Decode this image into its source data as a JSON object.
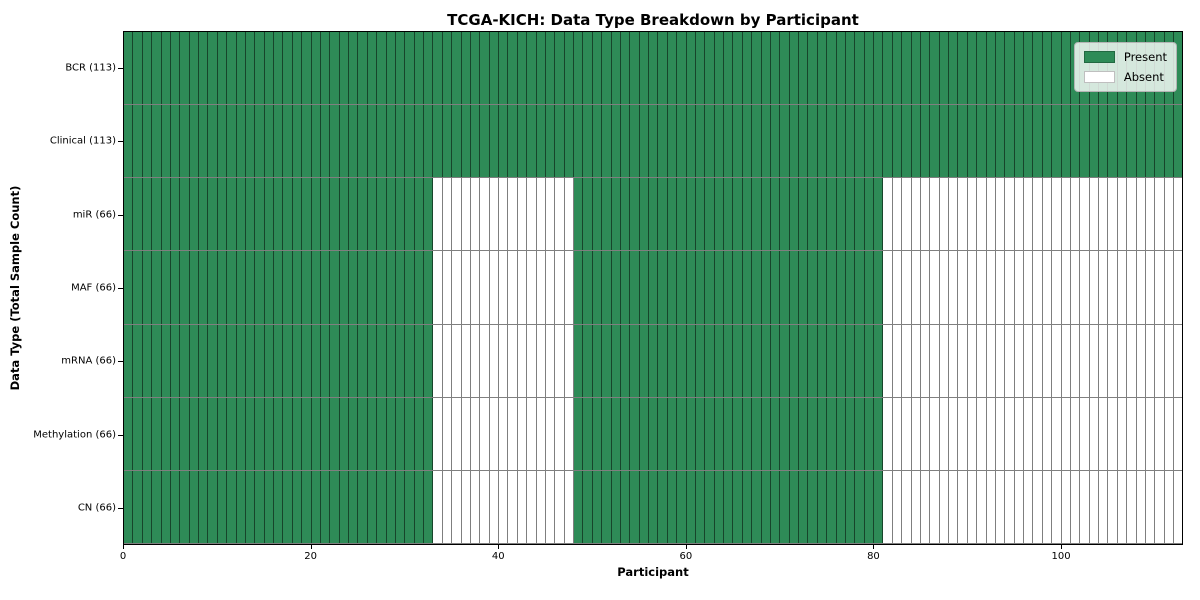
{
  "chart_data": {
    "type": "heatmap",
    "title": "TCGA-KICH: Data Type Breakdown by Participant",
    "xlabel": "Participant",
    "ylabel": "Data Type (Total Sample Count)",
    "x_ticks": [
      0,
      20,
      40,
      60,
      80,
      100
    ],
    "x_range": [
      0,
      113
    ],
    "n_participants": 113,
    "grid": false,
    "legend_position": "upper right",
    "legend": [
      {
        "label": "Present",
        "color": "#2e8b57"
      },
      {
        "label": "Absent",
        "color": "#ffffff"
      }
    ],
    "colors": {
      "present": "#2e8b57",
      "absent": "#ffffff",
      "cell_edge": "rgba(0,0,0,0.5)"
    },
    "rows": [
      {
        "label": "BCR (113)",
        "name": "BCR",
        "total_samples": 113,
        "present_segments": [
          [
            0,
            113
          ]
        ]
      },
      {
        "label": "Clinical (113)",
        "name": "Clinical",
        "total_samples": 113,
        "present_segments": [
          [
            0,
            113
          ]
        ]
      },
      {
        "label": "miR (66)",
        "name": "miR",
        "total_samples": 66,
        "present_segments": [
          [
            0,
            33
          ],
          [
            48,
            81
          ]
        ]
      },
      {
        "label": "MAF (66)",
        "name": "MAF",
        "total_samples": 66,
        "present_segments": [
          [
            0,
            33
          ],
          [
            48,
            81
          ]
        ]
      },
      {
        "label": "mRNA (66)",
        "name": "mRNA",
        "total_samples": 66,
        "present_segments": [
          [
            0,
            33
          ],
          [
            48,
            81
          ]
        ]
      },
      {
        "label": "Methylation (66)",
        "name": "Methylation",
        "total_samples": 66,
        "present_segments": [
          [
            0,
            33
          ],
          [
            48,
            81
          ]
        ]
      },
      {
        "label": "CN (66)",
        "name": "CN",
        "total_samples": 66,
        "present_segments": [
          [
            0,
            33
          ],
          [
            48,
            81
          ]
        ]
      }
    ]
  }
}
